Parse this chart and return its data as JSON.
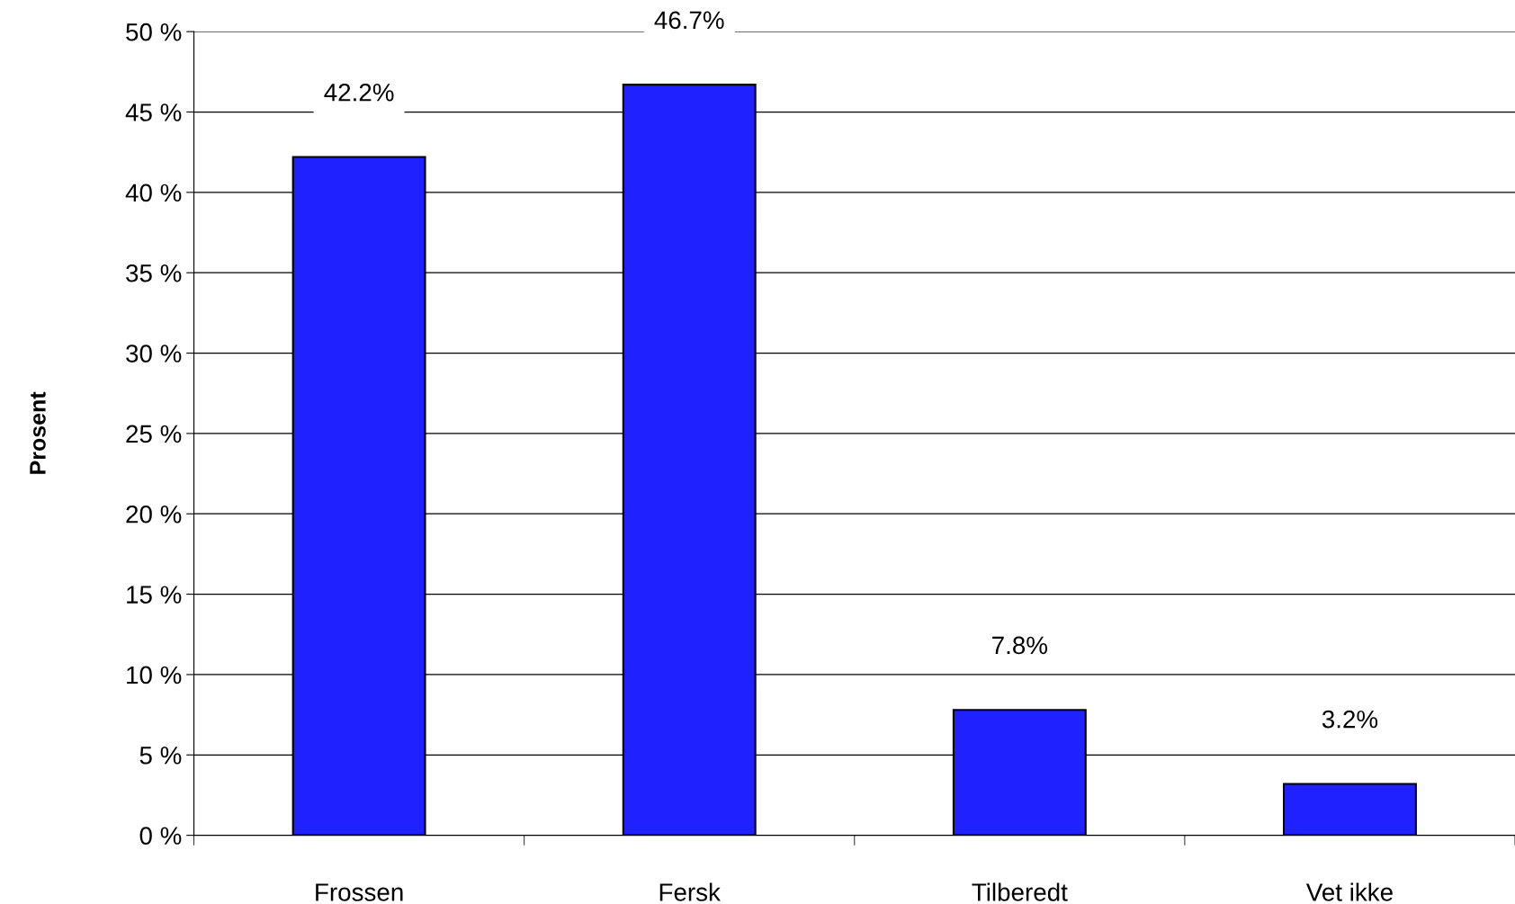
{
  "chart_data": {
    "type": "bar",
    "ylabel": "Prosent",
    "categories": [
      "Frossen",
      "Fersk",
      "Tilberedt",
      "Vet ikke"
    ],
    "values": [
      42.2,
      46.7,
      7.8,
      3.2
    ],
    "value_labels": [
      "42.2%",
      "46.7%",
      "7.8%",
      "3.2%"
    ],
    "color": "#1f22ff",
    "ylim": [
      0,
      50
    ],
    "yticks": [
      {
        "value": 0,
        "label": "0 %"
      },
      {
        "value": 5,
        "label": "5 %"
      },
      {
        "value": 10,
        "label": "10 %"
      },
      {
        "value": 15,
        "label": "15 %"
      },
      {
        "value": 20,
        "label": "20 %"
      },
      {
        "value": 25,
        "label": "25 %"
      },
      {
        "value": 30,
        "label": "30 %"
      },
      {
        "value": 35,
        "label": "35 %"
      },
      {
        "value": 40,
        "label": "40 %"
      },
      {
        "value": 45,
        "label": "45 %"
      },
      {
        "value": 50,
        "label": "50 %"
      }
    ],
    "grid": "y",
    "legend": false
  }
}
